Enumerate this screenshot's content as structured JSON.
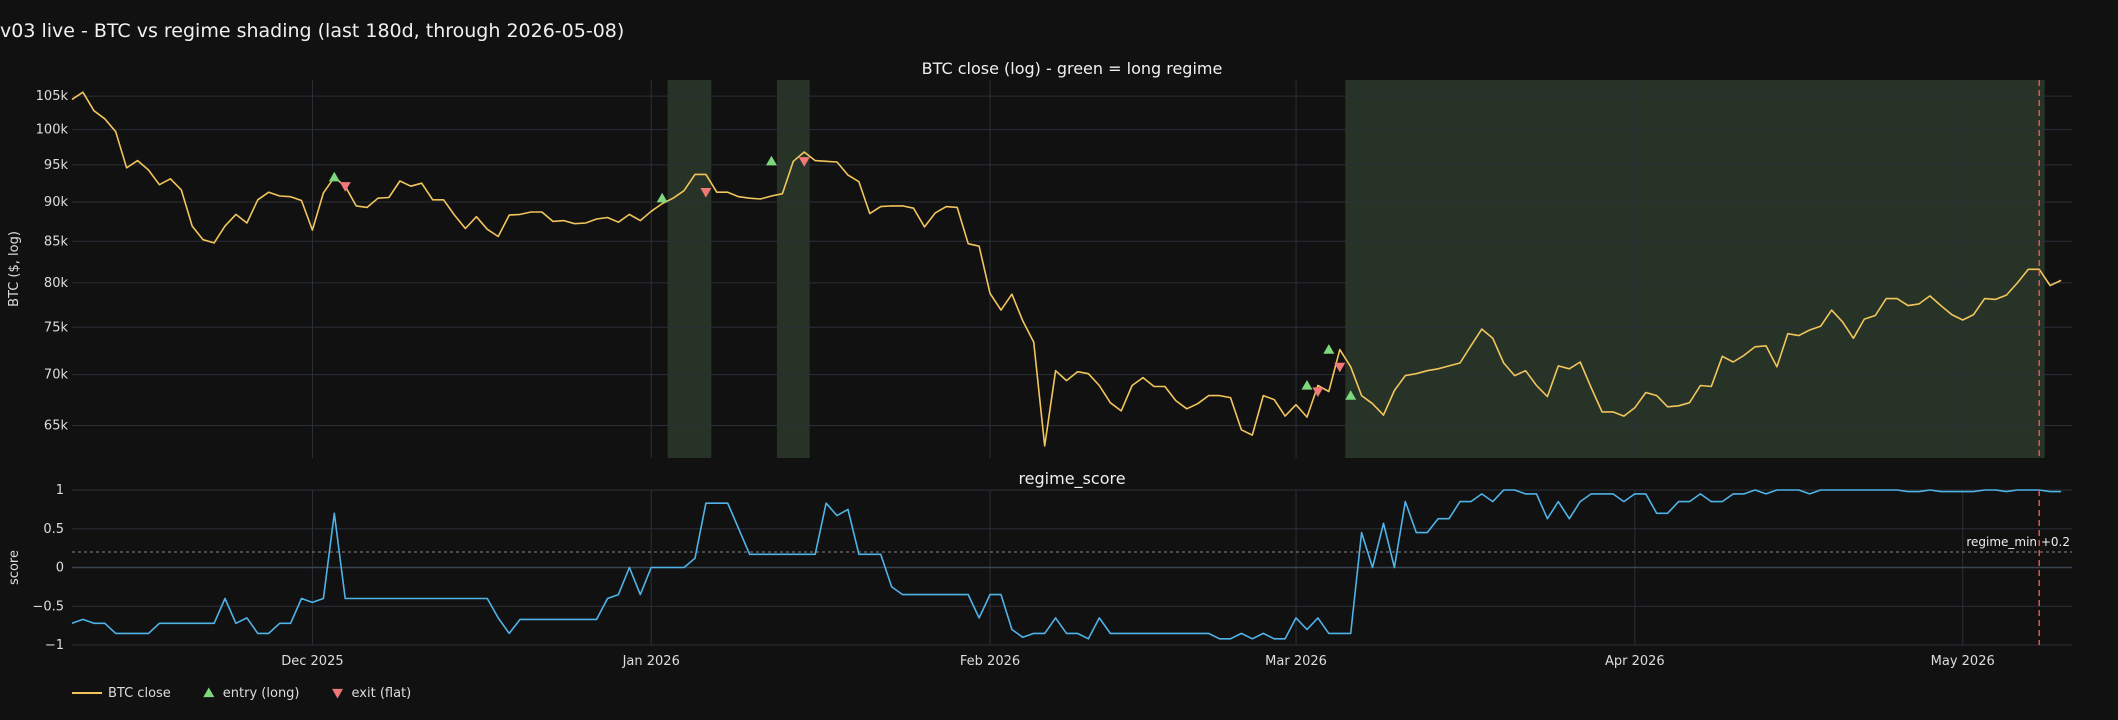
{
  "figure": {
    "title": "v03 live - BTC vs regime shading (last 180d, through 2026-05-08)"
  },
  "colors": {
    "background": "#111111",
    "grid": "#2a3038",
    "price_line": "#f2c55c",
    "score_line": "#4fb3e8",
    "regime_fill": "#2a3a2a",
    "entry": "#7dd87d",
    "exit": "#f07878",
    "end_marker": "#e05555"
  },
  "legend": {
    "placement": "bottom-left",
    "items": [
      {
        "key": "price",
        "label": "BTC close",
        "shape": "line"
      },
      {
        "key": "entry",
        "label": "entry (long)",
        "shape": "triangle-up"
      },
      {
        "key": "exit",
        "label": "exit (flat)",
        "shape": "triangle-down"
      }
    ]
  },
  "chart_data": [
    {
      "type": "line",
      "title": "BTC close (log) - green = long regime",
      "ylabel": "BTC ($, log)",
      "yscale": "log",
      "ylim": [
        62000,
        107500
      ],
      "xlim": [
        "2025-11-09",
        "2026-05-11"
      ],
      "x_ticks": [
        {
          "date": "2025-12-01",
          "label": "Dec 2025"
        },
        {
          "date": "2026-01-01",
          "label": "Jan 2026"
        },
        {
          "date": "2026-02-01",
          "label": "Feb 2026"
        },
        {
          "date": "2026-03-01",
          "label": "Mar 2026"
        },
        {
          "date": "2026-04-01",
          "label": "Apr 2026"
        },
        {
          "date": "2026-05-01",
          "label": "May 2026"
        }
      ],
      "y_ticks": [
        {
          "value": 65000,
          "label": "65k"
        },
        {
          "value": 70000,
          "label": "70k"
        },
        {
          "value": 75000,
          "label": "75k"
        },
        {
          "value": 80000,
          "label": "80k"
        },
        {
          "value": 85000,
          "label": "85k"
        },
        {
          "value": 90000,
          "label": "90k"
        },
        {
          "value": 95000,
          "label": "95k"
        },
        {
          "value": 100000,
          "label": "100k"
        },
        {
          "value": 105000,
          "label": "105k"
        }
      ],
      "grid": true,
      "regime_bands": [
        {
          "start": "2026-01-03",
          "end": "2026-01-06"
        },
        {
          "start": "2026-01-13",
          "end": "2026-01-15"
        },
        {
          "start": "2026-03-06",
          "end": "2026-05-08"
        }
      ],
      "end_marker": "2026-05-08",
      "series": [
        {
          "name": "BTC close",
          "key": "price",
          "start_date": "2025-11-09",
          "values": [
            104500,
            105600,
            102800,
            101600,
            99700,
            94600,
            95600,
            94300,
            92300,
            93100,
            91600,
            86900,
            85200,
            84800,
            86900,
            88400,
            87300,
            90300,
            91300,
            90800,
            90700,
            90200,
            86400,
            91200,
            93300,
            92100,
            89500,
            89300,
            90500,
            90600,
            92800,
            92100,
            92500,
            90300,
            90300,
            88300,
            86600,
            88100,
            86500,
            85600,
            88300,
            88400,
            88700,
            88700,
            87500,
            87600,
            87200,
            87300,
            87800,
            88000,
            87400,
            88400,
            87600,
            88800,
            89800,
            90500,
            91500,
            93700,
            93700,
            91300,
            91300,
            90700,
            90500,
            90400,
            90800,
            91100,
            95500,
            96800,
            95600,
            95500,
            95400,
            93600,
            92700,
            88500,
            89400,
            89500,
            89500,
            89200,
            86800,
            88600,
            89400,
            89300,
            84700,
            84400,
            78800,
            76900,
            78700,
            75700,
            73400,
            63100,
            70400,
            69400,
            70300,
            70100,
            68900,
            67200,
            66400,
            68900,
            69700,
            68800,
            68800,
            67400,
            66600,
            67100,
            67900,
            67900,
            67700,
            64600,
            64100,
            67900,
            67500,
            65900,
            67000,
            65800,
            68900,
            68300,
            72600,
            70800,
            67900,
            67100,
            66000,
            68400,
            69900,
            70100,
            70400,
            70600,
            70900,
            71200,
            73000,
            74800,
            73800,
            71200,
            69900,
            70400,
            68900,
            67800,
            70900,
            70600,
            71300,
            68700,
            66300,
            66300,
            65900,
            66700,
            68200,
            67900,
            66800,
            66900,
            67200,
            68900,
            68800,
            71900,
            71300,
            72000,
            72900,
            73000,
            70800,
            74300,
            74100,
            74700,
            75100,
            76900,
            75600,
            73800,
            75900,
            76300,
            78200,
            78200,
            77400,
            77600,
            78500,
            77400,
            76400,
            75800,
            76400,
            78200,
            78100,
            78600,
            80000,
            81600,
            81600,
            79700,
            80300
          ]
        }
      ],
      "markers": {
        "entry": [
          {
            "date": "2025-12-03",
            "value": 93300
          },
          {
            "date": "2026-01-02",
            "value": 90500
          },
          {
            "date": "2026-01-12",
            "value": 95500
          },
          {
            "date": "2026-03-02",
            "value": 68900
          },
          {
            "date": "2026-03-04",
            "value": 72600
          },
          {
            "date": "2026-03-06",
            "value": 67900
          }
        ],
        "exit": [
          {
            "date": "2025-12-04",
            "value": 92100
          },
          {
            "date": "2026-01-06",
            "value": 91300
          },
          {
            "date": "2026-01-15",
            "value": 95500
          },
          {
            "date": "2026-03-03",
            "value": 68300
          },
          {
            "date": "2026-03-05",
            "value": 70800
          }
        ]
      }
    },
    {
      "type": "line",
      "title": "regime_score",
      "ylabel": "score",
      "ylim": [
        -1,
        1
      ],
      "xlim": [
        "2025-11-09",
        "2026-05-11"
      ],
      "y_ticks": [
        {
          "value": -1,
          "label": "−1"
        },
        {
          "value": -0.5,
          "label": "−0.5"
        },
        {
          "value": 0,
          "label": "0"
        },
        {
          "value": 0.5,
          "label": "0.5"
        },
        {
          "value": 1,
          "label": "1"
        }
      ],
      "grid": true,
      "threshold": {
        "value": 0.2,
        "label": "regime_min +0.2"
      },
      "end_marker": "2026-05-08",
      "series": [
        {
          "name": "regime_score",
          "key": "score",
          "start_date": "2025-11-09",
          "values": [
            -0.72,
            -0.67,
            -0.72,
            -0.72,
            -0.85,
            -0.85,
            -0.85,
            -0.85,
            -0.72,
            -0.72,
            -0.72,
            -0.72,
            -0.72,
            -0.72,
            -0.4,
            -0.72,
            -0.65,
            -0.85,
            -0.85,
            -0.72,
            -0.72,
            -0.4,
            -0.45,
            -0.4,
            0.7,
            -0.4,
            -0.4,
            -0.4,
            -0.4,
            -0.4,
            -0.4,
            -0.4,
            -0.4,
            -0.4,
            -0.4,
            -0.4,
            -0.4,
            -0.4,
            -0.4,
            -0.65,
            -0.85,
            -0.67,
            -0.67,
            -0.67,
            -0.67,
            -0.67,
            -0.67,
            -0.67,
            -0.67,
            -0.4,
            -0.35,
            0,
            -0.35,
            0,
            0,
            0,
            0,
            0.12,
            0.83,
            0.83,
            0.83,
            0.5,
            0.17,
            0.17,
            0.17,
            0.17,
            0.17,
            0.17,
            0.17,
            0.83,
            0.67,
            0.75,
            0.17,
            0.17,
            0.17,
            -0.25,
            -0.35,
            -0.35,
            -0.35,
            -0.35,
            -0.35,
            -0.35,
            -0.35,
            -0.65,
            -0.35,
            -0.35,
            -0.8,
            -0.9,
            -0.85,
            -0.85,
            -0.65,
            -0.85,
            -0.85,
            -0.92,
            -0.65,
            -0.85,
            -0.85,
            -0.85,
            -0.85,
            -0.85,
            -0.85,
            -0.85,
            -0.85,
            -0.85,
            -0.85,
            -0.92,
            -0.92,
            -0.85,
            -0.92,
            -0.85,
            -0.92,
            -0.92,
            -0.65,
            -0.8,
            -0.65,
            -0.85,
            -0.85,
            -0.85,
            0.45,
            0,
            0.57,
            0,
            0.85,
            0.45,
            0.45,
            0.63,
            0.63,
            0.85,
            0.85,
            0.95,
            0.85,
            1,
            1,
            0.95,
            0.95,
            0.63,
            0.85,
            0.63,
            0.85,
            0.95,
            0.95,
            0.95,
            0.85,
            0.95,
            0.95,
            0.7,
            0.7,
            0.85,
            0.85,
            0.95,
            0.85,
            0.85,
            0.95,
            0.95,
            1,
            0.95,
            1,
            1,
            1,
            0.95,
            1,
            1,
            1,
            1,
            1,
            1,
            1,
            1,
            0.98,
            0.98,
            1,
            0.98,
            0.98,
            0.98,
            0.98,
            1,
            1,
            0.98,
            1,
            1,
            1,
            0.98,
            0.98
          ]
        }
      ]
    }
  ]
}
